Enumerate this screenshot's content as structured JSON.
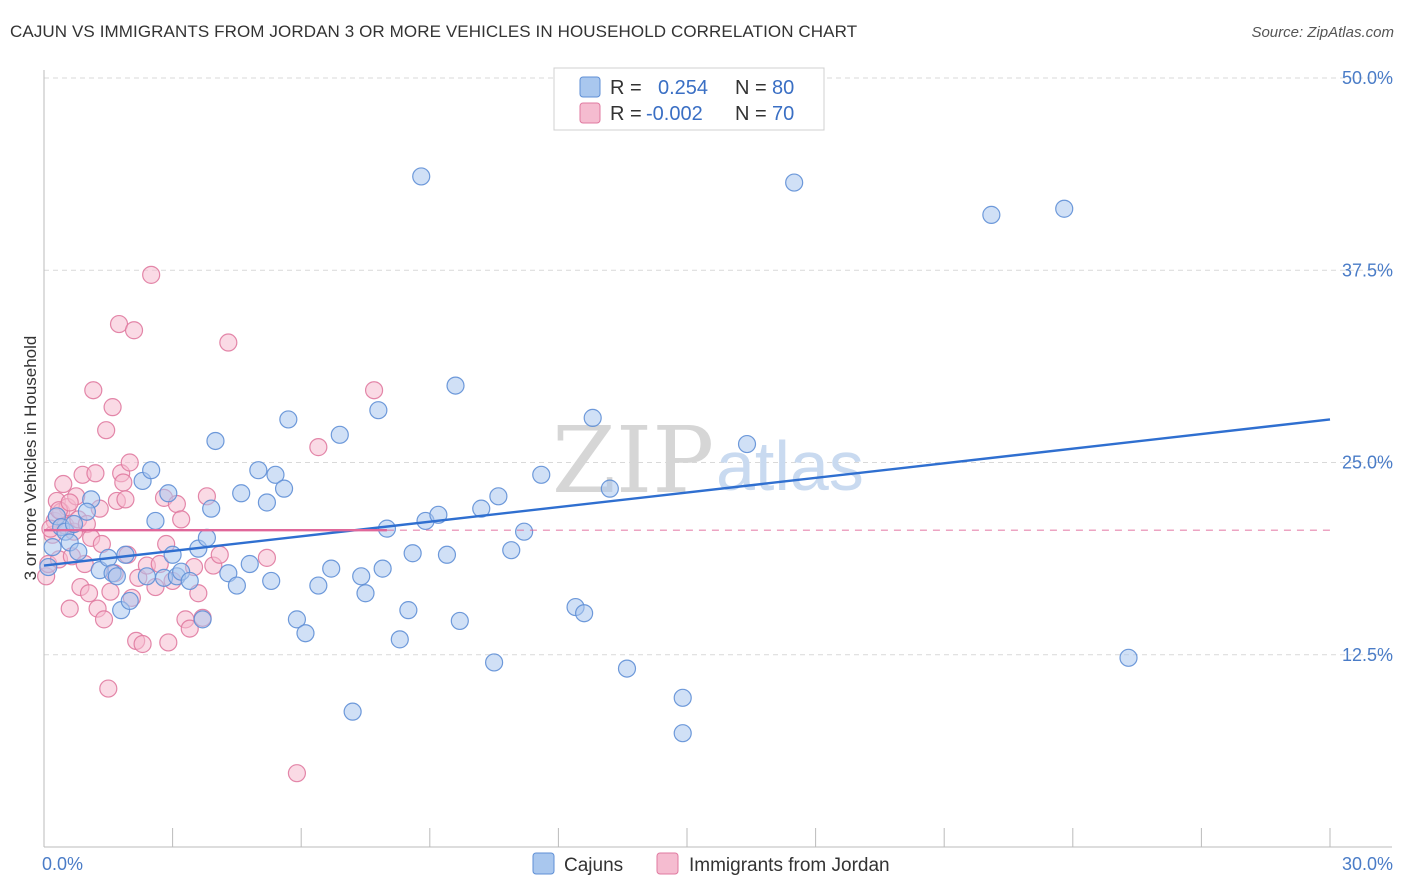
{
  "title": "CAJUN VS IMMIGRANTS FROM JORDAN 3 OR MORE VEHICLES IN HOUSEHOLD CORRELATION CHART",
  "source": "Source: ZipAtlas.com",
  "watermark": {
    "zip": "ZIP",
    "atlas": "atlas"
  },
  "colors": {
    "blue_fill": "#a9c7ee",
    "blue_stroke": "#5f8fd6",
    "blue_line": "#2f6fd0",
    "pink_fill": "#f5bcd0",
    "pink_stroke": "#e07aa0",
    "pink_line": "#e0679a",
    "grid": "#d9d9d9",
    "tick_text": "#4a7cc7"
  },
  "legend": {
    "rows": [
      {
        "r_label": "R =",
        "r_value": "0.254",
        "n_label": "N =",
        "n_value": "80"
      },
      {
        "r_label": "R =",
        "r_value": "-0.002",
        "n_label": "N =",
        "n_value": "70"
      }
    ]
  },
  "bottom_legend": [
    "Cajuns",
    "Immigrants from Jordan"
  ],
  "chart_data": {
    "type": "scatter",
    "title": "CAJUN VS IMMIGRANTS FROM JORDAN 3 OR MORE VEHICLES IN HOUSEHOLD CORRELATION CHART",
    "xlabel": "",
    "ylabel": "3 or more Vehicles in Household",
    "xlim": [
      0,
      30
    ],
    "ylim": [
      0,
      50
    ],
    "x_tick_labels": [
      "0.0%",
      "30.0%"
    ],
    "y_ticks": [
      12.5,
      25.0,
      37.5,
      50.0
    ],
    "y_tick_labels": [
      "12.5%",
      "25.0%",
      "37.5%",
      "50.0%"
    ],
    "series": [
      {
        "name": "Cajuns",
        "R": 0.254,
        "N": 80,
        "trend": {
          "x": [
            0,
            30
          ],
          "y": [
            18.3,
            27.8
          ],
          "dashed_to": null
        },
        "points": [
          [
            0.1,
            18.2
          ],
          [
            0.3,
            21.5
          ],
          [
            0.4,
            20.8
          ],
          [
            0.5,
            20.5
          ],
          [
            0.6,
            19.8
          ],
          [
            0.7,
            21.0
          ],
          [
            0.8,
            19.2
          ],
          [
            1.1,
            22.6
          ],
          [
            1.3,
            18.0
          ],
          [
            1.5,
            18.8
          ],
          [
            1.6,
            17.8
          ],
          [
            1.7,
            17.6
          ],
          [
            1.8,
            15.4
          ],
          [
            1.9,
            19.0
          ],
          [
            2.0,
            16.0
          ],
          [
            2.3,
            23.8
          ],
          [
            2.4,
            17.6
          ],
          [
            2.5,
            24.5
          ],
          [
            2.6,
            21.2
          ],
          [
            2.8,
            17.5
          ],
          [
            2.9,
            23.0
          ],
          [
            3.0,
            19.0
          ],
          [
            3.1,
            17.6
          ],
          [
            3.2,
            17.9
          ],
          [
            3.4,
            17.3
          ],
          [
            3.6,
            19.4
          ],
          [
            3.7,
            14.8
          ],
          [
            3.8,
            20.1
          ],
          [
            3.9,
            22.0
          ],
          [
            4.0,
            26.4
          ],
          [
            4.3,
            17.8
          ],
          [
            4.5,
            17.0
          ],
          [
            4.6,
            23.0
          ],
          [
            4.8,
            18.4
          ],
          [
            5.0,
            24.5
          ],
          [
            5.2,
            22.4
          ],
          [
            5.3,
            17.3
          ],
          [
            5.4,
            24.2
          ],
          [
            5.6,
            23.3
          ],
          [
            5.7,
            27.8
          ],
          [
            5.9,
            14.8
          ],
          [
            6.1,
            13.9
          ],
          [
            6.4,
            17.0
          ],
          [
            6.7,
            18.1
          ],
          [
            6.9,
            26.8
          ],
          [
            7.2,
            8.8
          ],
          [
            7.4,
            17.6
          ],
          [
            7.5,
            16.5
          ],
          [
            7.8,
            28.4
          ],
          [
            7.9,
            18.1
          ],
          [
            8.0,
            20.7
          ],
          [
            8.3,
            13.5
          ],
          [
            8.5,
            15.4
          ],
          [
            8.6,
            19.1
          ],
          [
            8.8,
            43.6
          ],
          [
            8.9,
            21.2
          ],
          [
            9.2,
            21.6
          ],
          [
            9.4,
            19.0
          ],
          [
            9.6,
            30.0
          ],
          [
            9.7,
            14.7
          ],
          [
            10.2,
            22.0
          ],
          [
            10.5,
            12.0
          ],
          [
            10.6,
            22.8
          ],
          [
            10.9,
            19.3
          ],
          [
            11.2,
            20.5
          ],
          [
            11.6,
            24.2
          ],
          [
            12.4,
            15.6
          ],
          [
            12.6,
            15.2
          ],
          [
            12.8,
            27.9
          ],
          [
            13.2,
            23.3
          ],
          [
            13.6,
            11.6
          ],
          [
            14.9,
            9.7
          ],
          [
            14.9,
            7.4
          ],
          [
            16.4,
            26.2
          ],
          [
            17.5,
            43.2
          ],
          [
            22.1,
            41.1
          ],
          [
            23.8,
            41.5
          ],
          [
            25.3,
            12.3
          ],
          [
            0.2,
            19.5
          ],
          [
            1.0,
            21.8
          ]
        ]
      },
      {
        "name": "Immigrants from Jordan",
        "R": -0.002,
        "N": 70,
        "trend": {
          "x": [
            0,
            8.0
          ],
          "y": [
            20.6,
            20.6
          ],
          "dashed_to": [
            30,
            20.6
          ]
        },
        "points": [
          [
            0.05,
            17.6
          ],
          [
            0.1,
            18.4
          ],
          [
            0.2,
            20.3
          ],
          [
            0.25,
            21.2
          ],
          [
            0.3,
            22.5
          ],
          [
            0.35,
            18.7
          ],
          [
            0.4,
            21.8
          ],
          [
            0.45,
            23.6
          ],
          [
            0.5,
            20.9
          ],
          [
            0.55,
            22.1
          ],
          [
            0.6,
            15.5
          ],
          [
            0.65,
            18.9
          ],
          [
            0.7,
            20.5
          ],
          [
            0.75,
            22.8
          ],
          [
            0.8,
            21.3
          ],
          [
            0.85,
            16.9
          ],
          [
            0.9,
            24.2
          ],
          [
            0.95,
            18.4
          ],
          [
            1.0,
            21.0
          ],
          [
            1.05,
            16.5
          ],
          [
            1.1,
            20.1
          ],
          [
            1.15,
            29.7
          ],
          [
            1.2,
            24.3
          ],
          [
            1.25,
            15.5
          ],
          [
            1.3,
            22.0
          ],
          [
            1.35,
            19.7
          ],
          [
            1.4,
            14.8
          ],
          [
            1.45,
            27.1
          ],
          [
            1.5,
            10.3
          ],
          [
            1.55,
            16.6
          ],
          [
            1.6,
            28.6
          ],
          [
            1.7,
            22.5
          ],
          [
            1.75,
            34.0
          ],
          [
            1.8,
            24.3
          ],
          [
            1.85,
            23.7
          ],
          [
            1.9,
            22.6
          ],
          [
            1.95,
            19.0
          ],
          [
            2.0,
            25.0
          ],
          [
            2.05,
            16.2
          ],
          [
            2.1,
            33.6
          ],
          [
            2.15,
            13.4
          ],
          [
            2.2,
            17.5
          ],
          [
            2.3,
            13.2
          ],
          [
            2.4,
            18.3
          ],
          [
            2.5,
            37.2
          ],
          [
            2.6,
            16.9
          ],
          [
            2.7,
            18.4
          ],
          [
            2.8,
            22.7
          ],
          [
            2.9,
            13.3
          ],
          [
            3.0,
            17.3
          ],
          [
            3.1,
            22.3
          ],
          [
            3.2,
            21.3
          ],
          [
            3.3,
            14.8
          ],
          [
            3.4,
            14.2
          ],
          [
            3.5,
            18.2
          ],
          [
            3.6,
            16.5
          ],
          [
            3.7,
            14.9
          ],
          [
            3.8,
            22.8
          ],
          [
            3.95,
            18.3
          ],
          [
            4.1,
            19.0
          ],
          [
            4.3,
            32.8
          ],
          [
            5.2,
            18.8
          ],
          [
            5.9,
            4.8
          ],
          [
            6.4,
            26.0
          ],
          [
            7.7,
            29.7
          ],
          [
            0.15,
            20.7
          ],
          [
            0.35,
            21.9
          ],
          [
            1.65,
            17.8
          ],
          [
            2.85,
            19.7
          ],
          [
            0.6,
            22.4
          ]
        ]
      }
    ]
  }
}
